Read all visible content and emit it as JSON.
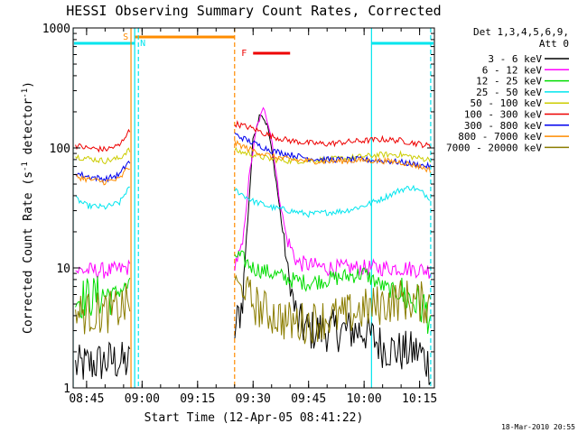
{
  "chart_data": {
    "type": "line",
    "title": "HESSI Observing Summary Count Rates, Corrected",
    "xlabel": "Start Time (12-Apr-05 08:41:22)",
    "ylabel_main": "Corrected Count Rate (s",
    "ylabel_sup1": "-1",
    "ylabel_mid": " detector",
    "ylabel_sup2": "-1",
    "ylabel_end": ")",
    "yscale": "log",
    "ylim": [
      1,
      1000
    ],
    "xlim": [
      "08:41:22",
      "10:19:00"
    ],
    "x_ticks": [
      "08:45",
      "09:00",
      "09:15",
      "09:30",
      "09:45",
      "10:00",
      "10:15"
    ],
    "y_ticks": [
      "1",
      "10",
      "100",
      "1000"
    ],
    "legend_position": "right",
    "legend_header_1": "Det 1,3,4,5,6,9,",
    "legend_header_2": "Att 0",
    "timestamp": "18-Mar-2010 20:55",
    "series": [
      {
        "name": "3 - 6 keV",
        "color": "#000000",
        "points": [
          [
            "08:42",
            1.5
          ],
          [
            "08:47",
            1.6
          ],
          [
            "08:52",
            1.7
          ],
          [
            "08:56",
            1.6
          ],
          [
            "09:25",
            3
          ],
          [
            "09:27",
            5
          ],
          [
            "09:29",
            40
          ],
          [
            "09:30",
            120
          ],
          [
            "09:32",
            200
          ],
          [
            "09:34",
            150
          ],
          [
            "09:36",
            60
          ],
          [
            "09:38",
            20
          ],
          [
            "09:40",
            7
          ],
          [
            "09:42",
            3.5
          ],
          [
            "09:45",
            3
          ],
          [
            "09:50",
            3
          ],
          [
            "09:55",
            3
          ],
          [
            "10:00",
            3
          ],
          [
            "10:05",
            2.2
          ],
          [
            "10:10",
            2.0
          ],
          [
            "10:15",
            2.0
          ],
          [
            "10:18",
            1.5
          ]
        ]
      },
      {
        "name": "6 - 12 keV",
        "color": "#ff00ff",
        "points": [
          [
            "08:42",
            9.5
          ],
          [
            "08:47",
            9.5
          ],
          [
            "08:52",
            9.5
          ],
          [
            "08:56",
            10
          ],
          [
            "09:25",
            11
          ],
          [
            "09:27",
            14
          ],
          [
            "09:29",
            60
          ],
          [
            "09:31",
            150
          ],
          [
            "09:33",
            220
          ],
          [
            "09:35",
            120
          ],
          [
            "09:37",
            40
          ],
          [
            "09:39",
            18
          ],
          [
            "09:42",
            11
          ],
          [
            "09:50",
            10
          ],
          [
            "10:00",
            10
          ],
          [
            "10:10",
            10
          ],
          [
            "10:18",
            9.5
          ]
        ]
      },
      {
        "name": "12 - 25 keV",
        "color": "#00dd00",
        "points": [
          [
            "08:42",
            5.5
          ],
          [
            "08:47",
            5.8
          ],
          [
            "08:52",
            6.0
          ],
          [
            "08:56",
            7
          ],
          [
            "09:25",
            13
          ],
          [
            "09:27",
            12
          ],
          [
            "09:30",
            10
          ],
          [
            "09:35",
            9
          ],
          [
            "09:40",
            8
          ],
          [
            "09:45",
            7.5
          ],
          [
            "09:50",
            8
          ],
          [
            "09:55",
            8.5
          ],
          [
            "10:00",
            9
          ],
          [
            "10:05",
            7
          ],
          [
            "10:10",
            6
          ],
          [
            "10:15",
            5
          ],
          [
            "10:18",
            4
          ]
        ]
      },
      {
        "name": "25 - 50 keV",
        "color": "#00e5ee",
        "points": [
          [
            "08:42",
            38
          ],
          [
            "08:45",
            33
          ],
          [
            "08:50",
            32
          ],
          [
            "08:54",
            35
          ],
          [
            "08:56",
            45
          ],
          [
            "09:25",
            45
          ],
          [
            "09:30",
            36
          ],
          [
            "09:35",
            32
          ],
          [
            "09:40",
            30
          ],
          [
            "09:45",
            28
          ],
          [
            "09:50",
            29
          ],
          [
            "09:55",
            30
          ],
          [
            "10:00",
            33
          ],
          [
            "10:05",
            38
          ],
          [
            "10:10",
            45
          ],
          [
            "10:13",
            47
          ],
          [
            "10:16",
            42
          ],
          [
            "10:18",
            38
          ]
        ]
      },
      {
        "name": "50 - 100 keV",
        "color": "#cccc00",
        "points": [
          [
            "08:42",
            85
          ],
          [
            "08:45",
            82
          ],
          [
            "08:50",
            78
          ],
          [
            "08:54",
            82
          ],
          [
            "08:56",
            95
          ],
          [
            "09:25",
            95
          ],
          [
            "09:30",
            88
          ],
          [
            "09:35",
            80
          ],
          [
            "09:40",
            78
          ],
          [
            "09:45",
            78
          ],
          [
            "09:50",
            80
          ],
          [
            "09:55",
            82
          ],
          [
            "10:00",
            85
          ],
          [
            "10:05",
            88
          ],
          [
            "10:10",
            88
          ],
          [
            "10:15",
            82
          ],
          [
            "10:18",
            80
          ]
        ]
      },
      {
        "name": "100 - 300 keV",
        "color": "#ee0000",
        "points": [
          [
            "08:42",
            105
          ],
          [
            "08:45",
            100
          ],
          [
            "08:50",
            97
          ],
          [
            "08:54",
            105
          ],
          [
            "08:56",
            135
          ],
          [
            "09:25",
            160
          ],
          [
            "09:30",
            145
          ],
          [
            "09:35",
            125
          ],
          [
            "09:40",
            115
          ],
          [
            "09:45",
            110
          ],
          [
            "09:50",
            108
          ],
          [
            "09:55",
            112
          ],
          [
            "10:00",
            115
          ],
          [
            "10:05",
            118
          ],
          [
            "10:10",
            115
          ],
          [
            "10:15",
            108
          ],
          [
            "10:18",
            103
          ]
        ]
      },
      {
        "name": "300 - 800 keV",
        "color": "#0000ee",
        "points": [
          [
            "08:42",
            62
          ],
          [
            "08:45",
            58
          ],
          [
            "08:50",
            55
          ],
          [
            "08:54",
            60
          ],
          [
            "08:56",
            75
          ],
          [
            "09:25",
            130
          ],
          [
            "09:30",
            110
          ],
          [
            "09:35",
            95
          ],
          [
            "09:40",
            88
          ],
          [
            "09:45",
            82
          ],
          [
            "09:50",
            80
          ],
          [
            "09:55",
            80
          ],
          [
            "10:00",
            80
          ],
          [
            "10:05",
            78
          ],
          [
            "10:10",
            76
          ],
          [
            "10:15",
            72
          ],
          [
            "10:18",
            70
          ]
        ]
      },
      {
        "name": "800 - 7000 keV",
        "color": "#ff8c00",
        "points": [
          [
            "08:42",
            58
          ],
          [
            "08:45",
            55
          ],
          [
            "08:50",
            52
          ],
          [
            "08:54",
            55
          ],
          [
            "08:56",
            68
          ],
          [
            "09:25",
            110
          ],
          [
            "09:30",
            95
          ],
          [
            "09:35",
            85
          ],
          [
            "09:40",
            80
          ],
          [
            "09:45",
            78
          ],
          [
            "09:50",
            77
          ],
          [
            "09:55",
            78
          ],
          [
            "10:00",
            79
          ],
          [
            "10:05",
            78
          ],
          [
            "10:10",
            76
          ],
          [
            "10:15",
            70
          ],
          [
            "10:18",
            65
          ]
        ]
      },
      {
        "name": "7000 - 20000 keV",
        "color": "#8b7d00",
        "points": [
          [
            "08:42",
            4.2
          ],
          [
            "08:47",
            4.2
          ],
          [
            "08:52",
            4.3
          ],
          [
            "08:56",
            5
          ],
          [
            "09:25",
            8
          ],
          [
            "09:28",
            6
          ],
          [
            "09:32",
            4.5
          ],
          [
            "09:36",
            4
          ],
          [
            "09:40",
            3.5
          ],
          [
            "09:45",
            3.5
          ],
          [
            "09:50",
            3.8
          ],
          [
            "09:55",
            4
          ],
          [
            "10:00",
            4.5
          ],
          [
            "10:05",
            5
          ],
          [
            "10:10",
            5.5
          ],
          [
            "10:15",
            5.2
          ],
          [
            "10:18",
            5
          ]
        ]
      }
    ],
    "flags": {
      "saa": {
        "label": "S",
        "start": "08:58",
        "end": "09:25",
        "color": "#ff8c00"
      },
      "night": {
        "label": "N",
        "color": "#00e5ee",
        "intervals": [
          [
            "08:40",
            "08:58"
          ],
          [
            "10:02",
            "10:19"
          ]
        ]
      },
      "flare": {
        "label": "F",
        "start": "09:30",
        "end": "09:40",
        "color": "#ee0000"
      }
    },
    "vertical_markers": [
      {
        "time": "08:41:22",
        "color": "#00e5ee",
        "style": "solid"
      },
      {
        "time": "08:57:00",
        "color": "#ff8c00",
        "style": "solid"
      },
      {
        "time": "08:58:00",
        "color": "#00e5ee",
        "style": "solid"
      },
      {
        "time": "08:59:00",
        "color": "#00e5ee",
        "style": "dashed"
      },
      {
        "time": "09:25:00",
        "color": "#ff8c00",
        "style": "dashed"
      },
      {
        "time": "10:02:00",
        "color": "#00e5ee",
        "style": "solid"
      },
      {
        "time": "10:18:00",
        "color": "#00e5ee",
        "style": "dashed"
      }
    ]
  }
}
